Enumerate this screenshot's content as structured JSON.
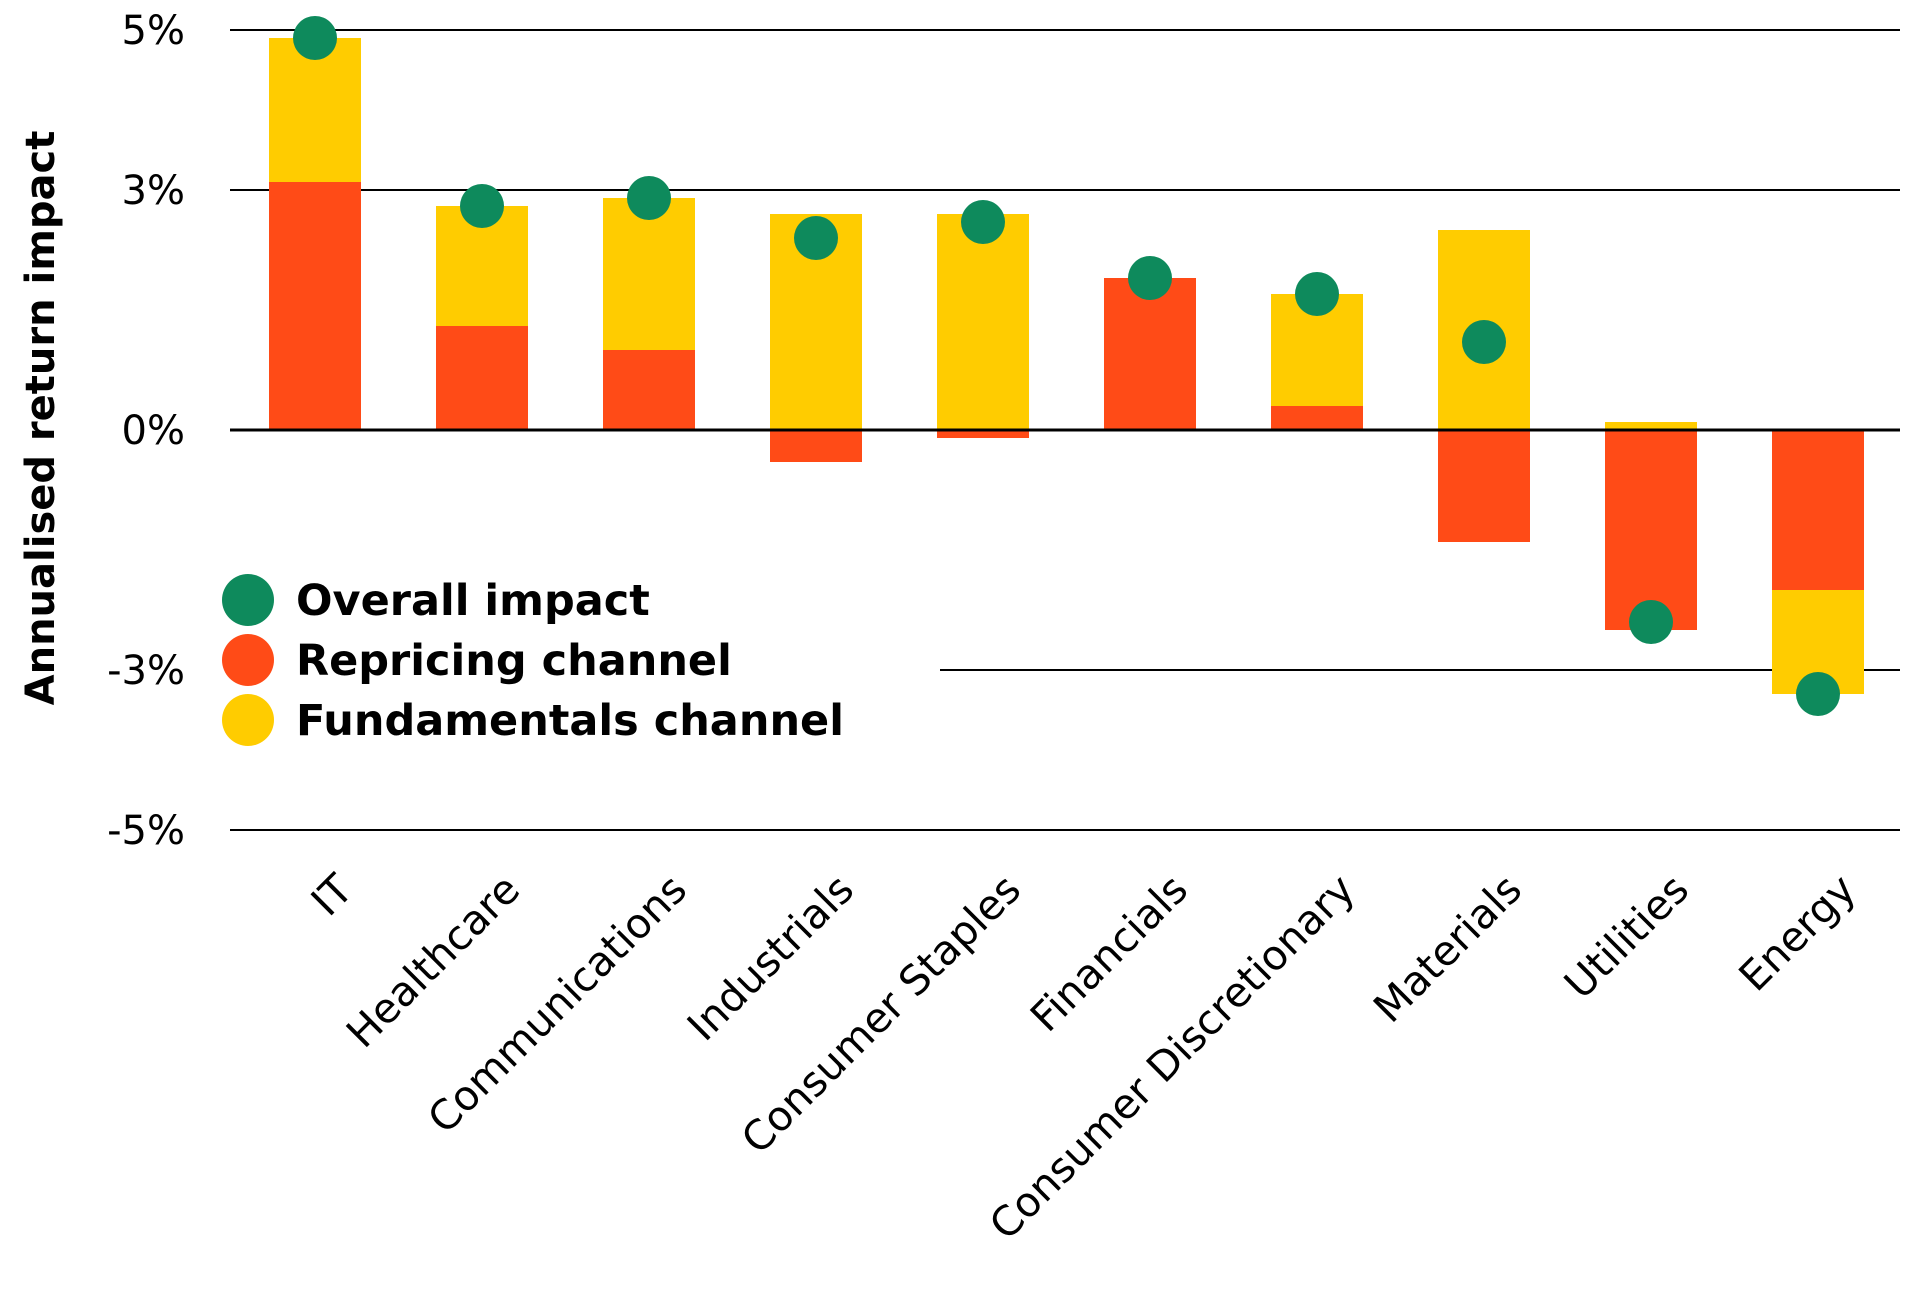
{
  "chart_data": {
    "type": "bar",
    "title": "",
    "xlabel": "",
    "ylabel": "Annualised return impact",
    "ylim": [
      -5,
      5
    ],
    "y_ticks": [
      {
        "value": 5,
        "label": "5%"
      },
      {
        "value": 3,
        "label": "3%"
      },
      {
        "value": 0,
        "label": "0%"
      },
      {
        "value": -3,
        "label": "-3%"
      },
      {
        "value": -5,
        "label": "-5%"
      }
    ],
    "categories": [
      "IT",
      "Healthcare",
      "Communications",
      "Industrials",
      "Consumer Staples",
      "Financials",
      "Consumer Discretionary",
      "Materials",
      "Utilities",
      "Energy"
    ],
    "series": [
      {
        "name": "Overall impact",
        "mark": "point",
        "color": "#0E8A5C",
        "values": [
          4.9,
          2.8,
          2.9,
          2.4,
          2.6,
          1.9,
          1.7,
          1.1,
          -2.4,
          -3.3
        ]
      },
      {
        "name": "Repricing channel",
        "mark": "bar",
        "color": "#FF4B17",
        "values": [
          3.1,
          1.3,
          1.0,
          -0.4,
          -0.1,
          1.9,
          0.3,
          -1.4,
          -2.5,
          -2.0
        ]
      },
      {
        "name": "Fundamentals channel",
        "mark": "bar",
        "color": "#FFCC00",
        "values": [
          1.8,
          1.5,
          1.9,
          2.7,
          2.7,
          0.0,
          1.4,
          2.5,
          0.1,
          -1.3
        ]
      }
    ],
    "legend_position": "bottom-left",
    "grid": true
  }
}
